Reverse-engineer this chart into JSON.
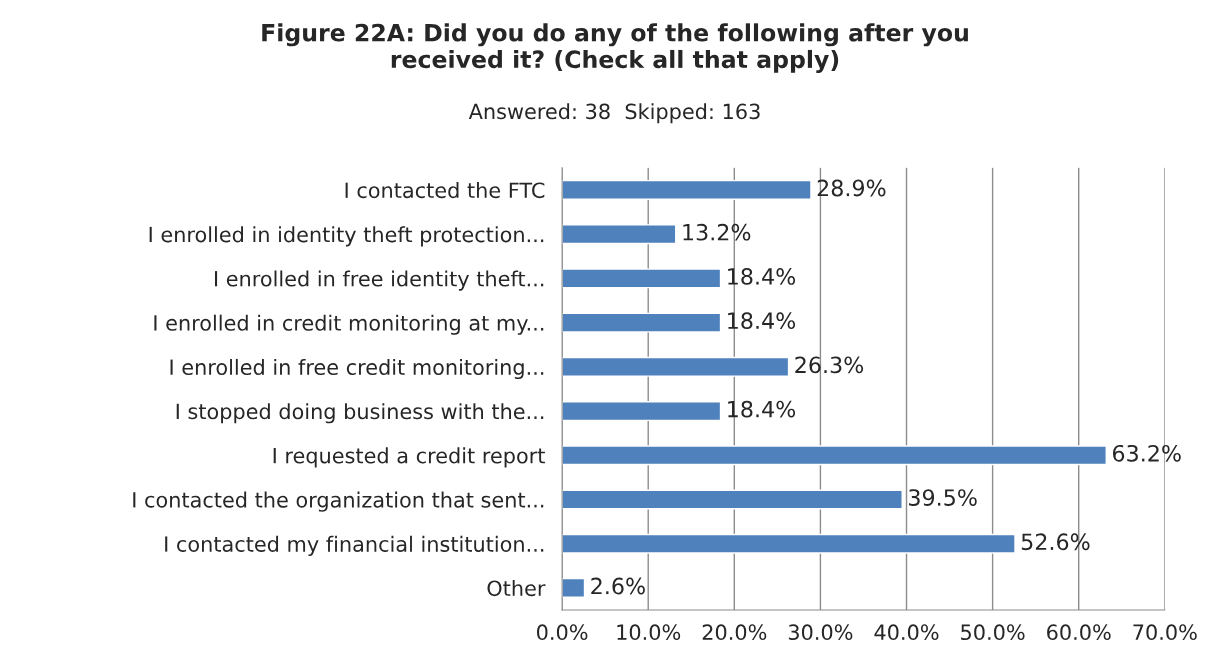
{
  "chart_data": {
    "type": "bar",
    "orientation": "horizontal",
    "title": "Figure 22A: Did you do any of the following after you\nreceived it? (Check all that apply)",
    "subtitle": "Answered: 38  Skipped: 163",
    "categories": [
      "I contacted the FTC",
      "I enrolled in identity theft protection...",
      "I enrolled in free identity theft...",
      "I enrolled in credit monitoring at my...",
      "I enrolled in free credit monitoring...",
      "I stopped doing business with the...",
      "I requested a credit report",
      "I contacted the organization that sent...",
      "I contacted my financial institution...",
      "Other"
    ],
    "values": [
      28.9,
      13.2,
      18.4,
      18.4,
      26.3,
      18.4,
      63.2,
      39.5,
      52.6,
      2.6
    ],
    "value_labels": [
      "28.9%",
      "13.2%",
      "18.4%",
      "18.4%",
      "26.3%",
      "18.4%",
      "63.2%",
      "39.5%",
      "52.6%",
      "2.6%"
    ],
    "color": "#4f81bd",
    "xlim": [
      0,
      70
    ],
    "xticks": [
      {
        "value": 0,
        "label": "0.0%"
      },
      {
        "value": 10,
        "label": "10.0%"
      },
      {
        "value": 20,
        "label": "20.0%"
      },
      {
        "value": 30,
        "label": "30.0%"
      },
      {
        "value": 40,
        "label": "40.0%"
      },
      {
        "value": 50,
        "label": "50.0%"
      },
      {
        "value": 60,
        "label": "60.0%"
      },
      {
        "value": 70,
        "label": "70.0%"
      }
    ],
    "grid": "x",
    "legend": false
  }
}
